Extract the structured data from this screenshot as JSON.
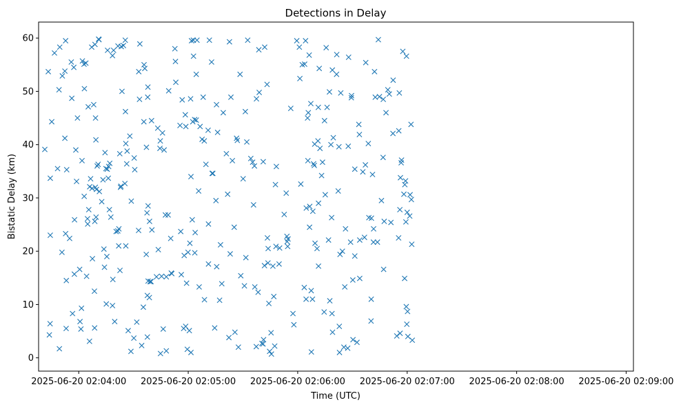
{
  "chart_data": {
    "type": "scatter",
    "title": "Detections in Delay",
    "xlabel": "Time (UTC)",
    "ylabel": "Bistatic Delay (km)",
    "marker": "x",
    "color": "#1f77b4",
    "x_unit": "seconds after 2025-06-20 02:04:00",
    "xlim": [
      -22,
      304
    ],
    "ylim": [
      -2.5,
      63
    ],
    "xticks": [
      {
        "value": 0,
        "label": "2025-06-20 02:04:00"
      },
      {
        "value": 60,
        "label": "2025-06-20 02:05:00"
      },
      {
        "value": 120,
        "label": "2025-06-20 02:06:00"
      },
      {
        "value": 180,
        "label": "2025-06-20 02:07:00"
      },
      {
        "value": 240,
        "label": "2025-06-20 02:08:00"
      },
      {
        "value": 300,
        "label": "2025-06-20 02:09:00"
      }
    ],
    "yticks": [
      {
        "value": 0,
        "label": "0"
      },
      {
        "value": 10,
        "label": "10"
      },
      {
        "value": 20,
        "label": "20"
      },
      {
        "value": 30,
        "label": "30"
      },
      {
        "value": 40,
        "label": "40"
      },
      {
        "value": 50,
        "label": "50"
      },
      {
        "value": 60,
        "label": "60"
      }
    ],
    "points": [
      [
        -18.6,
        39.1
      ],
      [
        -16.7,
        53.7
      ],
      [
        -16.1,
        4.3
      ],
      [
        -15.7,
        6.4
      ],
      [
        -15.6,
        33.7
      ],
      [
        -15.6,
        23
      ],
      [
        -14.8,
        44.3
      ],
      [
        -13.3,
        57.2
      ],
      [
        -11.6,
        35.5
      ],
      [
        -10.8,
        50.3
      ],
      [
        -10.6,
        1.7
      ],
      [
        -10.4,
        58.3
      ],
      [
        -9.2,
        19.8
      ],
      [
        -9,
        52.9
      ],
      [
        -7.6,
        41.2
      ],
      [
        -7.6,
        53.8
      ],
      [
        -7.2,
        23.3
      ],
      [
        -7.2,
        59.5
      ],
      [
        -6.9,
        5.5
      ],
      [
        -6.8,
        14.5
      ],
      [
        -6.6,
        35.3
      ],
      [
        -5,
        22.4
      ],
      [
        -4.1,
        55.5
      ],
      [
        -3.8,
        48.7
      ],
      [
        -3.4,
        8.3
      ],
      [
        -2.7,
        54.5
      ],
      [
        -2.4,
        15.7
      ],
      [
        -2.3,
        25.9
      ],
      [
        -1.6,
        39
      ],
      [
        -1.2,
        33.1
      ],
      [
        -0.7,
        45
      ],
      [
        0.5,
        16.6
      ],
      [
        0.7,
        6.8
      ],
      [
        1.2,
        5.4
      ],
      [
        1.8,
        37
      ],
      [
        1.5,
        9.3
      ],
      [
        2,
        55.7
      ],
      [
        2.9,
        55.1
      ],
      [
        3,
        30.3
      ],
      [
        3.1,
        50.5
      ],
      [
        3.9,
        55.3
      ],
      [
        4.3,
        15.3
      ],
      [
        4.8,
        26.1
      ],
      [
        4.9,
        25.1
      ],
      [
        5.2,
        47.1
      ],
      [
        5.5,
        27.8
      ],
      [
        5.9,
        3.1
      ],
      [
        6,
        32.1
      ],
      [
        6.5,
        33.6
      ],
      [
        7.1,
        58.3
      ],
      [
        7.3,
        31.8
      ],
      [
        7.5,
        18.6
      ],
      [
        8.2,
        47.5
      ],
      [
        8.6,
        12.5
      ],
      [
        8.7,
        5.6
      ],
      [
        8.8,
        25.6
      ],
      [
        8.9,
        58.8
      ],
      [
        9.1,
        32
      ],
      [
        9.2,
        45
      ],
      [
        9.4,
        40.9
      ],
      [
        9.5,
        26.4
      ],
      [
        9.7,
        31.6
      ],
      [
        10.1,
        36
      ],
      [
        10.6,
        36.3
      ],
      [
        10.9,
        59.8
      ],
      [
        11.1,
        59.7
      ],
      [
        11.3,
        31.2
      ],
      [
        12.6,
        29.3
      ],
      [
        13.3,
        33.4
      ],
      [
        13.8,
        20.4
      ],
      [
        14.1,
        17
      ],
      [
        14.4,
        38.5
      ],
      [
        14.9,
        35.5
      ],
      [
        15.1,
        10.1
      ],
      [
        15.4,
        19
      ],
      [
        15.6,
        35.4
      ],
      [
        15.8,
        57.7
      ],
      [
        16.2,
        33.7
      ],
      [
        16.4,
        35.9
      ],
      [
        16.8,
        27.8
      ],
      [
        17,
        36.5
      ],
      [
        17.6,
        26.4
      ],
      [
        18.5,
        9.8
      ],
      [
        18.5,
        56.7
      ],
      [
        18.7,
        14.7
      ],
      [
        19.1,
        57.7
      ],
      [
        19.7,
        6.8
      ],
      [
        20.5,
        23.7
      ],
      [
        21.4,
        23.8
      ],
      [
        21.5,
        58.5
      ],
      [
        21.9,
        21
      ],
      [
        22,
        24.2
      ],
      [
        22.5,
        38.3
      ],
      [
        22.6,
        16.4
      ],
      [
        22.9,
        32
      ],
      [
        23.1,
        32.2
      ],
      [
        23.3,
        58.4
      ],
      [
        23.7,
        50
      ],
      [
        24.5,
        58.6
      ],
      [
        25.3,
        32.7
      ],
      [
        25.5,
        59.6
      ],
      [
        25.6,
        46.2
      ],
      [
        25.8,
        40.2
      ],
      [
        25.8,
        21
      ],
      [
        26.3,
        36.4
      ],
      [
        26.5,
        38.8
      ],
      [
        27.1,
        5.1
      ],
      [
        28,
        41.6
      ],
      [
        28.6,
        1.2
      ],
      [
        28.8,
        29.4
      ],
      [
        30.2,
        3.7
      ],
      [
        30.4,
        37.5
      ],
      [
        30.7,
        35.3
      ],
      [
        31.8,
        6.7
      ],
      [
        32.8,
        23.9
      ],
      [
        32.9,
        53.7
      ],
      [
        33.3,
        48.5
      ],
      [
        33.5,
        58.9
      ],
      [
        34.5,
        2.3
      ],
      [
        35.4,
        9.5
      ],
      [
        35.7,
        44.3
      ],
      [
        35.8,
        55
      ],
      [
        36.2,
        54.3
      ],
      [
        37,
        19.4
      ],
      [
        37.1,
        39.5
      ],
      [
        37.4,
        27.2
      ],
      [
        37.6,
        3.9
      ],
      [
        37.6,
        11.7
      ],
      [
        37.8,
        48.9
      ],
      [
        37.9,
        50.8
      ],
      [
        38,
        28.5
      ],
      [
        38,
        14.4
      ],
      [
        38.7,
        11.3
      ],
      [
        38.8,
        25.6
      ],
      [
        39.1,
        14.3
      ],
      [
        39.6,
        14.3
      ],
      [
        39.9,
        44.5
      ],
      [
        40.1,
        24
      ],
      [
        42.6,
        15.2
      ],
      [
        43.3,
        43.1
      ],
      [
        43.6,
        20.3
      ],
      [
        44.5,
        39.3
      ],
      [
        44.7,
        40.7
      ],
      [
        44.8,
        0.8
      ],
      [
        45.4,
        15.3
      ],
      [
        45.9,
        42.2
      ],
      [
        46.3,
        5.4
      ],
      [
        46.8,
        39
      ],
      [
        47.5,
        26.8
      ],
      [
        48,
        1.3
      ],
      [
        48,
        15.2
      ],
      [
        49,
        26.8
      ],
      [
        49.3,
        50.1
      ],
      [
        50.4,
        22.4
      ],
      [
        50.7,
        15.9
      ],
      [
        51,
        15.8
      ],
      [
        52.7,
        58
      ],
      [
        53,
        55.6
      ],
      [
        53.2,
        51.7
      ],
      [
        55.5,
        43.6
      ],
      [
        55.9,
        23.7
      ],
      [
        56.2,
        15.6
      ],
      [
        56.7,
        48.4
      ],
      [
        57.5,
        5.5
      ],
      [
        57.8,
        19.2
      ],
      [
        58.4,
        45.6
      ],
      [
        58.6,
        5.9
      ],
      [
        58.7,
        43.4
      ],
      [
        59.1,
        14
      ],
      [
        59.5,
        1.6
      ],
      [
        59.9,
        19.8
      ],
      [
        60.6,
        5.1
      ],
      [
        60.9,
        21.5
      ],
      [
        61.3,
        48.6
      ],
      [
        61.5,
        1
      ],
      [
        61.5,
        34
      ],
      [
        61.8,
        59.5
      ],
      [
        62.2,
        25.9
      ],
      [
        62.5,
        44.3
      ],
      [
        62.8,
        59.6
      ],
      [
        62.9,
        56.6
      ],
      [
        63.5,
        44.7
      ],
      [
        63.6,
        19.7
      ],
      [
        63.8,
        23.5
      ],
      [
        64.4,
        44.6
      ],
      [
        64.4,
        53.2
      ],
      [
        64.8,
        59.6
      ],
      [
        65.7,
        31.3
      ],
      [
        66,
        13.3
      ],
      [
        66.5,
        43.4
      ],
      [
        67.6,
        41
      ],
      [
        68.2,
        48.9
      ],
      [
        68.8,
        40.7
      ],
      [
        68.9,
        10.9
      ],
      [
        69.7,
        36.3
      ],
      [
        70.9,
        42.7
      ],
      [
        71.1,
        17.6
      ],
      [
        71.1,
        25.1
      ],
      [
        71.6,
        59.6
      ],
      [
        72.8,
        55.5
      ],
      [
        73.1,
        34.6
      ],
      [
        73.5,
        34.6
      ],
      [
        74.5,
        5.6
      ],
      [
        75.2,
        29.5
      ],
      [
        75.5,
        47.5
      ],
      [
        75.6,
        17.1
      ],
      [
        76.1,
        42.3
      ],
      [
        77.2,
        10.8
      ],
      [
        77.7,
        21.2
      ],
      [
        78.4,
        13.9
      ],
      [
        79.2,
        46
      ],
      [
        80.9,
        38.3
      ],
      [
        81.6,
        30.7
      ],
      [
        82.3,
        3.8
      ],
      [
        82.6,
        59.3
      ],
      [
        83,
        19.5
      ],
      [
        83.4,
        48.9
      ],
      [
        84.2,
        37
      ],
      [
        85.2,
        24.5
      ],
      [
        85.6,
        4.8
      ],
      [
        86.5,
        41.2
      ],
      [
        86.9,
        40.8
      ],
      [
        87.5,
        2
      ],
      [
        88.4,
        53.2
      ],
      [
        88.8,
        15.4
      ],
      [
        90.1,
        33.6
      ],
      [
        90.8,
        13.5
      ],
      [
        91.3,
        46.2
      ],
      [
        91.6,
        18.8
      ],
      [
        92.1,
        40.5
      ],
      [
        92.6,
        59.6
      ],
      [
        94.3,
        37.4
      ],
      [
        95.3,
        36.7
      ],
      [
        95.8,
        28.7
      ],
      [
        96.3,
        36
      ],
      [
        96.5,
        13.3
      ],
      [
        97.3,
        2.1
      ],
      [
        97.4,
        48.6
      ],
      [
        98.3,
        12.3
      ],
      [
        98.7,
        57.8
      ],
      [
        98.9,
        49.8
      ],
      [
        100.4,
        2.7
      ],
      [
        101,
        2.6
      ],
      [
        101.1,
        36.8
      ],
      [
        101.3,
        3.4
      ],
      [
        101.8,
        17.3
      ],
      [
        101.9,
        58.3
      ],
      [
        103.2,
        51.3
      ],
      [
        103.4,
        22.5
      ],
      [
        103.7,
        17.8
      ],
      [
        103.8,
        20.5
      ],
      [
        104.2,
        10.2
      ],
      [
        104.6,
        1.2
      ],
      [
        105.4,
        4.7
      ],
      [
        105.6,
        0.7
      ],
      [
        106.4,
        17.2
      ],
      [
        106.9,
        11.5
      ],
      [
        107.4,
        2.2
      ],
      [
        107.8,
        32.5
      ],
      [
        108.1,
        20.9
      ],
      [
        108.3,
        35.9
      ],
      [
        109.8,
        17.6
      ],
      [
        110.1,
        20.6
      ],
      [
        112.6,
        26.9
      ],
      [
        113.7,
        30.9
      ],
      [
        114.1,
        22.8
      ],
      [
        114.2,
        21.8
      ],
      [
        114.5,
        20.9
      ],
      [
        114.7,
        22.3
      ],
      [
        116.2,
        46.8
      ],
      [
        117.4,
        8.3
      ],
      [
        117.9,
        6.2
      ],
      [
        119.5,
        59.5
      ],
      [
        120.9,
        58.3
      ],
      [
        121.2,
        52.4
      ],
      [
        121.7,
        32.6
      ],
      [
        122.5,
        55
      ],
      [
        123.6,
        13.2
      ],
      [
        123.8,
        55.1
      ],
      [
        124.3,
        59.5
      ],
      [
        124.6,
        11
      ],
      [
        124.7,
        28.1
      ],
      [
        125.4,
        45
      ],
      [
        125.6,
        37
      ],
      [
        125.8,
        46
      ],
      [
        126.3,
        56.8
      ],
      [
        126.5,
        24.5
      ],
      [
        126.6,
        28.4
      ],
      [
        127.2,
        47.7
      ],
      [
        127.4,
        12.6
      ],
      [
        127.5,
        1.1
      ],
      [
        128.1,
        11
      ],
      [
        128.3,
        27.5
      ],
      [
        128.7,
        36.4
      ],
      [
        129.1,
        36.1
      ],
      [
        129.3,
        40.1
      ],
      [
        129.5,
        21.5
      ],
      [
        130.6,
        20.5
      ],
      [
        131.1,
        40.7
      ],
      [
        131.3,
        47
      ],
      [
        131.4,
        17.2
      ],
      [
        131.4,
        29
      ],
      [
        131.8,
        54.3
      ],
      [
        132.2,
        39.3
      ],
      [
        133.1,
        34.2
      ],
      [
        133.6,
        36.7
      ],
      [
        134.5,
        8.6
      ],
      [
        134.7,
        44.5
      ],
      [
        135.1,
        30.6
      ],
      [
        135.6,
        58.2
      ],
      [
        136.1,
        47
      ],
      [
        136.9,
        22.1
      ],
      [
        137.4,
        49.9
      ],
      [
        137.6,
        10.7
      ],
      [
        138.2,
        40
      ],
      [
        138.6,
        26.3
      ],
      [
        138.8,
        8.3
      ],
      [
        139,
        54
      ],
      [
        139.1,
        4.8
      ],
      [
        139.5,
        41.3
      ],
      [
        141.3,
        53.2
      ],
      [
        141.4,
        56.9
      ],
      [
        142.2,
        31.3
      ],
      [
        142.6,
        39.6
      ],
      [
        142.8,
        5.9
      ],
      [
        142.9,
        1
      ],
      [
        143.2,
        19.4
      ],
      [
        143.6,
        49.7
      ],
      [
        144.5,
        20
      ],
      [
        145.3,
        2
      ],
      [
        145.8,
        13.3
      ],
      [
        146.2,
        24.2
      ],
      [
        147.4,
        1.8
      ],
      [
        147.7,
        39.7
      ],
      [
        147.9,
        56.4
      ],
      [
        149,
        21.7
      ],
      [
        149.4,
        48.8
      ],
      [
        149.5,
        49.2
      ],
      [
        150.2,
        14.6
      ],
      [
        150.3,
        3.4
      ],
      [
        151.3,
        35.4
      ],
      [
        151.3,
        19.1
      ],
      [
        152.5,
        2.9
      ],
      [
        153.5,
        43.8
      ],
      [
        153.8,
        41.9
      ],
      [
        154,
        14.9
      ],
      [
        154,
        22.1
      ],
      [
        155.7,
        34.9
      ],
      [
        156.6,
        22.6
      ],
      [
        157.1,
        36.2
      ],
      [
        157.3,
        55.4
      ],
      [
        158.7,
        40.2
      ],
      [
        159,
        26.3
      ],
      [
        160.2,
        6.9
      ],
      [
        160.3,
        11
      ],
      [
        160.4,
        26.2
      ],
      [
        161,
        34.4
      ],
      [
        161.5,
        21.7
      ],
      [
        161.6,
        24.2
      ],
      [
        162.1,
        53.7
      ],
      [
        162.5,
        48.9
      ],
      [
        163.7,
        21.7
      ],
      [
        164.2,
        59.7
      ],
      [
        164.8,
        49
      ],
      [
        165.9,
        29.5
      ],
      [
        166.8,
        37.6
      ],
      [
        166.9,
        48.5
      ],
      [
        167.1,
        16.6
      ],
      [
        167.4,
        25.6
      ],
      [
        168.4,
        46
      ],
      [
        169.4,
        50.3
      ],
      [
        170.2,
        49.5
      ],
      [
        171.1,
        25.4
      ],
      [
        172.2,
        42.1
      ],
      [
        172.3,
        52.1
      ],
      [
        174.3,
        4.1
      ],
      [
        175.3,
        22.5
      ],
      [
        175.4,
        42.6
      ],
      [
        175.7,
        49.7
      ],
      [
        176,
        27.8
      ],
      [
        176.1,
        4.6
      ],
      [
        176.3,
        33.8
      ],
      [
        176.7,
        36.6
      ],
      [
        176.9,
        37.1
      ],
      [
        177.6,
        57.5
      ],
      [
        178.2,
        30.7
      ],
      [
        178.6,
        14.9
      ],
      [
        178.7,
        32.5
      ],
      [
        179.1,
        33.2
      ],
      [
        179.3,
        25.5
      ],
      [
        179.5,
        9.6
      ],
      [
        179.6,
        56.6
      ],
      [
        179.8,
        6.3
      ],
      [
        180,
        27.3
      ],
      [
        180.2,
        8.7
      ],
      [
        180.4,
        4
      ],
      [
        181.4,
        26.6
      ],
      [
        181.6,
        30.6
      ],
      [
        182.1,
        43.8
      ],
      [
        182.3,
        29.7
      ],
      [
        182.5,
        21.3
      ],
      [
        182.8,
        3.3
      ]
    ],
    "grid": false,
    "legend": "none"
  }
}
